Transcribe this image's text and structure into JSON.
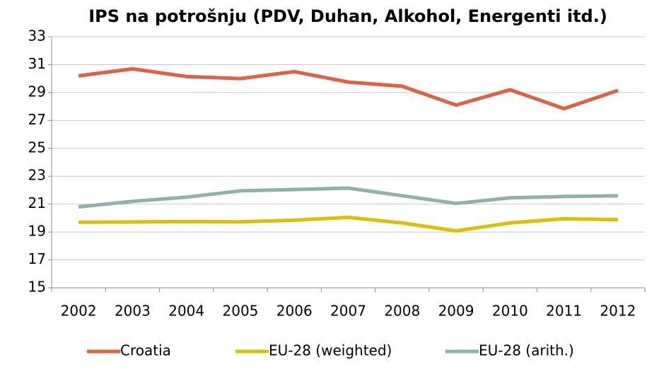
{
  "chart_data": {
    "type": "line",
    "title": "IPS na potrošnju (PDV, Duhan, Alkohol, Energenti itd.)",
    "categories": [
      "2002",
      "2003",
      "2004",
      "2005",
      "2006",
      "2007",
      "2008",
      "2009",
      "2010",
      "2011",
      "2012"
    ],
    "series": [
      {
        "name": "Croatia",
        "color": "#e0603f",
        "values": [
          30.2,
          30.7,
          30.15,
          30.0,
          30.5,
          29.75,
          29.45,
          28.1,
          29.2,
          27.85,
          29.15
        ]
      },
      {
        "name": "EU-28 (weighted)",
        "color": "#dcc000",
        "values": [
          19.7,
          19.72,
          19.75,
          19.73,
          19.85,
          20.05,
          19.65,
          19.08,
          19.65,
          19.95,
          19.88
        ]
      },
      {
        "name": "EU-28 (arith.)",
        "color": "#8fb0ac",
        "values": [
          20.8,
          21.2,
          21.5,
          21.95,
          22.05,
          22.15,
          21.6,
          21.05,
          21.45,
          21.55,
          21.6
        ]
      }
    ],
    "ylim": [
      15,
      33
    ],
    "yticks": [
      15,
      17,
      19,
      21,
      23,
      25,
      27,
      29,
      31,
      33
    ],
    "grid": true,
    "legend": "bottom"
  }
}
